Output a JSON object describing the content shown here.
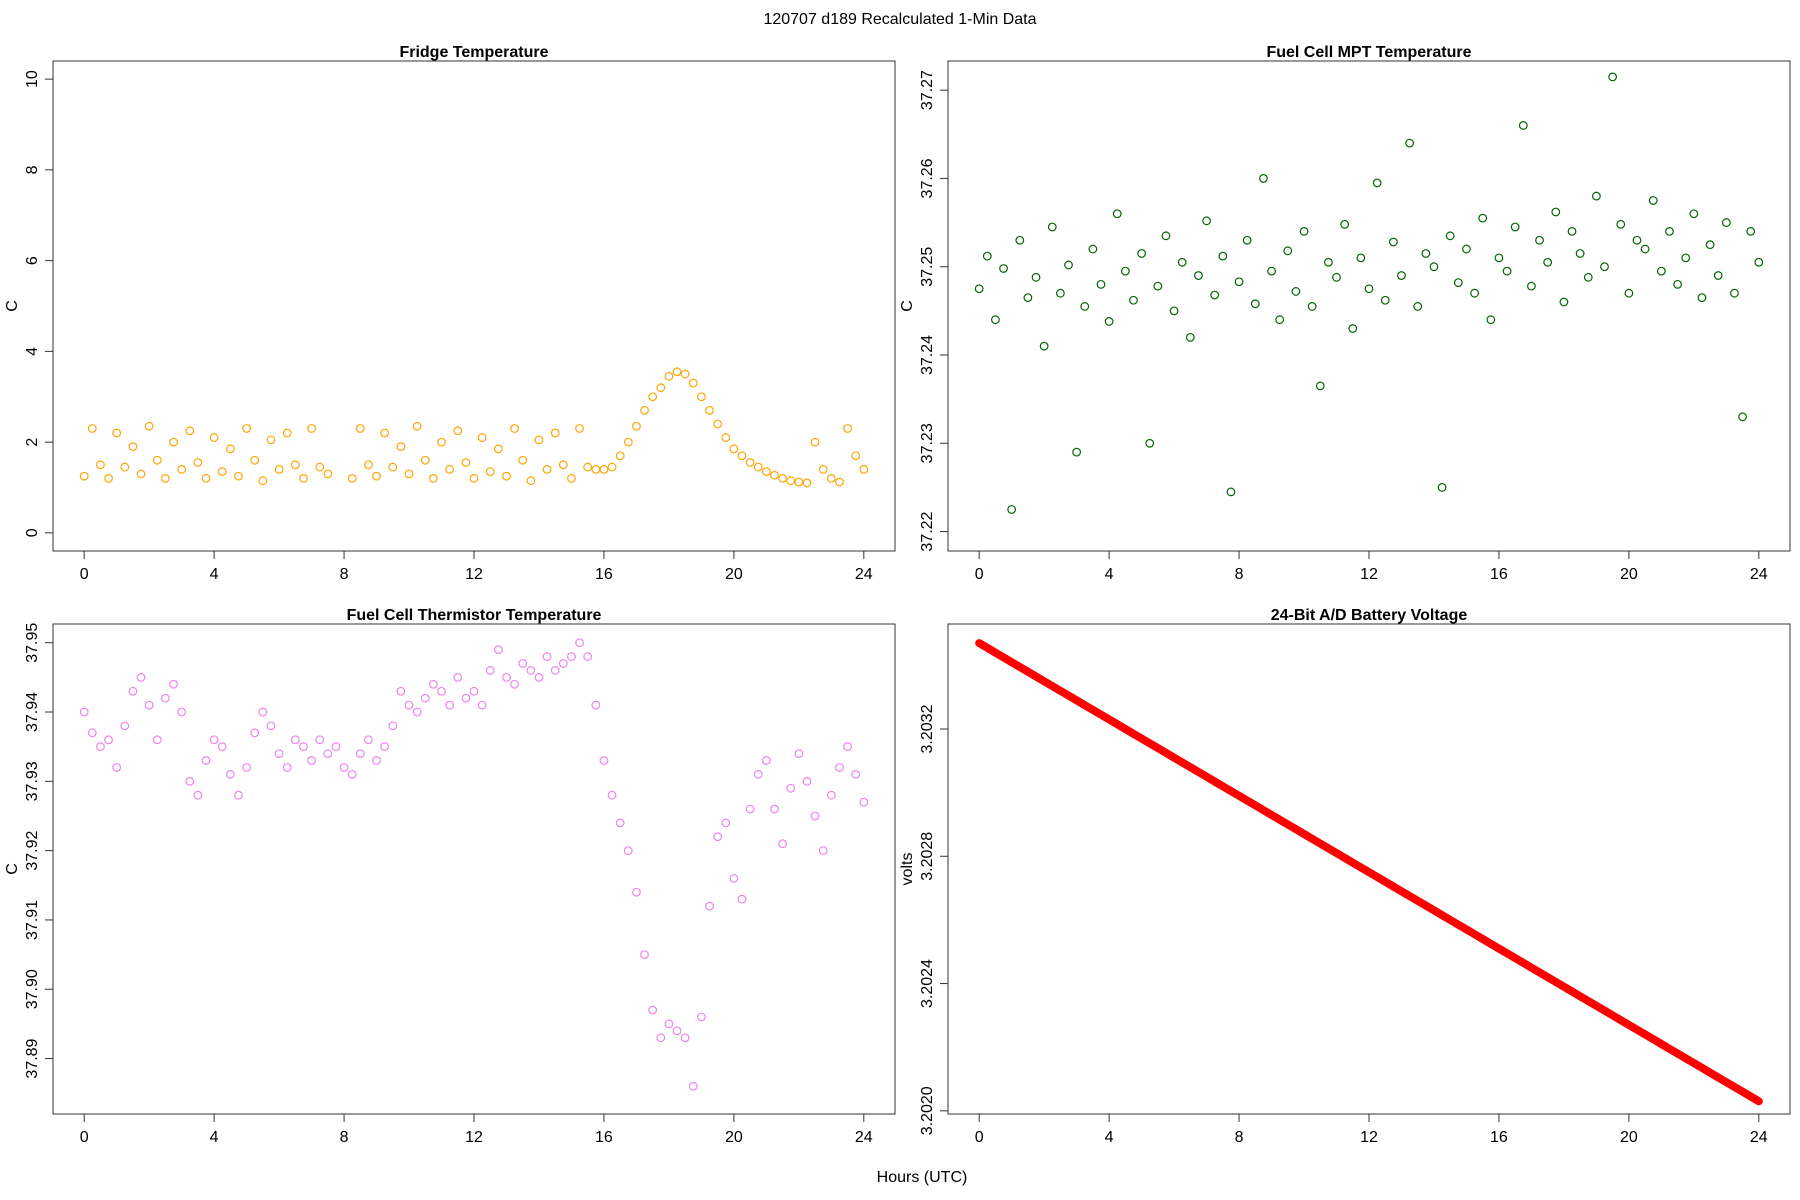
{
  "title": "120707   d189   Recalculated 1-Min Data",
  "xlabel": "Hours (UTC)",
  "chart_data": [
    {
      "type": "scatter",
      "title": "Fridge Temperature",
      "ylabel": "C",
      "color": "#ffa500",
      "xlim": [
        -0.96,
        24.96
      ],
      "ylim": [
        -0.4,
        10.4
      ],
      "xticks": [
        0,
        4,
        8,
        12,
        16,
        20,
        24
      ],
      "yticks": [
        0,
        2,
        4,
        6,
        8,
        10
      ],
      "x": [
        0,
        0.25,
        0.5,
        0.75,
        1,
        1.25,
        1.5,
        1.75,
        2,
        2.25,
        2.5,
        2.75,
        3,
        3.25,
        3.5,
        3.75,
        4,
        4.25,
        4.5,
        4.75,
        5,
        5.25,
        5.5,
        5.75,
        6,
        6.25,
        6.5,
        6.75,
        7,
        7.25,
        7.5,
        7.75,
        8,
        8.25,
        8.5,
        8.75,
        9,
        9.25,
        9.5,
        9.75,
        10,
        10.25,
        10.5,
        10.75,
        11,
        11.25,
        11.5,
        11.75,
        12,
        12.25,
        12.5,
        12.75,
        13,
        13.25,
        13.5,
        13.75,
        14,
        14.25,
        14.5,
        14.75,
        15,
        15.25,
        15.5,
        15.75,
        16,
        16.25,
        16.5,
        16.75,
        17,
        17.25,
        17.5,
        17.75,
        18,
        18.25,
        18.5,
        18.75,
        19,
        19.25,
        19.5,
        19.75,
        20,
        20.25,
        20.5,
        20.75,
        21,
        21.25,
        21.5,
        21.75,
        22,
        22.25,
        22.5,
        22.75,
        23,
        23.25,
        23.5,
        23.75,
        24
      ],
      "values": [
        1.25,
        2.3,
        1.5,
        1.2,
        2.2,
        1.45,
        1.9,
        1.3,
        2.35,
        1.6,
        1.2,
        2.0,
        1.4,
        2.25,
        1.55,
        1.2,
        2.1,
        1.35,
        1.85,
        1.25,
        2.3,
        1.6,
        1.15,
        2.05,
        1.4,
        2.2,
        1.5,
        1.2,
        2.3,
        1.45,
        1.3,
        null,
        null,
        1.2,
        2.3,
        1.5,
        1.25,
        2.2,
        1.45,
        1.9,
        1.3,
        2.35,
        1.6,
        1.2,
        2.0,
        1.4,
        2.25,
        1.55,
        1.2,
        2.1,
        1.35,
        1.85,
        1.25,
        2.3,
        1.6,
        1.15,
        2.05,
        1.4,
        2.2,
        1.5,
        1.2,
        2.3,
        1.45,
        1.4,
        1.4,
        1.45,
        1.7,
        2.0,
        2.35,
        2.7,
        3.0,
        3.2,
        3.45,
        3.55,
        3.5,
        3.3,
        3.0,
        2.7,
        2.4,
        2.1,
        1.85,
        1.7,
        1.55,
        1.45,
        1.35,
        1.27,
        1.2,
        1.15,
        1.12,
        1.1,
        2.0,
        1.4,
        1.2,
        1.12,
        2.3,
        1.7,
        1.4
      ]
    },
    {
      "type": "scatter",
      "title": "Fuel Cell MPT Temperature",
      "ylabel": "C",
      "color": "#006400",
      "xlim": [
        -0.96,
        24.96
      ],
      "ylim": [
        37.2178,
        37.2733
      ],
      "xticks": [
        0,
        4,
        8,
        12,
        16,
        20,
        24
      ],
      "yticks": [
        37.22,
        37.23,
        37.24,
        37.25,
        37.26,
        37.27
      ],
      "x": [
        0,
        0.25,
        0.5,
        0.75,
        1,
        1.25,
        1.5,
        1.75,
        2,
        2.25,
        2.5,
        2.75,
        3,
        3.25,
        3.5,
        3.75,
        4,
        4.25,
        4.5,
        4.75,
        5,
        5.25,
        5.5,
        5.75,
        6,
        6.25,
        6.5,
        6.75,
        7,
        7.25,
        7.5,
        7.75,
        8,
        8.25,
        8.5,
        8.75,
        9,
        9.25,
        9.5,
        9.75,
        10,
        10.25,
        10.5,
        10.75,
        11,
        11.25,
        11.5,
        11.75,
        12,
        12.25,
        12.5,
        12.75,
        13,
        13.25,
        13.5,
        13.75,
        14,
        14.25,
        14.5,
        14.75,
        15,
        15.25,
        15.5,
        15.75,
        16,
        16.25,
        16.5,
        16.75,
        17,
        17.25,
        17.5,
        17.75,
        18,
        18.25,
        18.5,
        18.75,
        19,
        19.25,
        19.5,
        19.75,
        20,
        20.25,
        20.5,
        20.75,
        21,
        21.25,
        21.5,
        21.75,
        22,
        22.25,
        22.5,
        22.75,
        23,
        23.25,
        23.5,
        23.75,
        24
      ],
      "values": [
        37.2475,
        37.2512,
        37.244,
        37.2498,
        37.2225,
        37.253,
        37.2465,
        37.2488,
        37.241,
        37.2545,
        37.247,
        37.2502,
        37.229,
        37.2455,
        37.252,
        37.248,
        37.2438,
        37.256,
        37.2495,
        37.2462,
        37.2515,
        37.23,
        37.2478,
        37.2535,
        37.245,
        37.2505,
        37.242,
        37.249,
        37.2552,
        37.2468,
        37.2512,
        37.2245,
        37.2483,
        37.253,
        37.2458,
        37.26,
        37.2495,
        37.244,
        37.2518,
        37.2472,
        37.254,
        37.2455,
        37.2365,
        37.2505,
        37.2488,
        37.2548,
        37.243,
        37.251,
        37.2475,
        37.2595,
        37.2462,
        37.2528,
        37.249,
        37.264,
        37.2455,
        37.2515,
        37.25,
        37.225,
        37.2535,
        37.2482,
        37.252,
        37.247,
        37.2555,
        37.244,
        37.251,
        37.2495,
        37.2545,
        37.266,
        37.2478,
        37.253,
        37.2505,
        37.2562,
        37.246,
        37.254,
        37.2515,
        37.2488,
        37.258,
        37.25,
        37.2715,
        37.2548,
        37.247,
        37.253,
        37.252,
        37.2575,
        37.2495,
        37.254,
        37.248,
        37.251,
        37.256,
        37.2465,
        37.2525,
        37.249,
        37.255,
        37.247,
        37.233,
        37.254,
        37.2505
      ]
    },
    {
      "type": "scatter",
      "title": "Fuel Cell Thermistor Temperature",
      "ylabel": "C",
      "color": "#ee82ee",
      "xlim": [
        -0.96,
        24.96
      ],
      "ylim": [
        37.882,
        37.9527
      ],
      "xticks": [
        0,
        4,
        8,
        12,
        16,
        20,
        24
      ],
      "yticks": [
        37.89,
        {
          "value": 37.9,
          "label": "37.90"
        },
        37.91,
        37.92,
        37.93,
        37.94,
        37.95
      ],
      "x": [
        0,
        0.25,
        0.5,
        0.75,
        1,
        1.25,
        1.5,
        1.75,
        2,
        2.25,
        2.5,
        2.75,
        3,
        3.25,
        3.5,
        3.75,
        4,
        4.25,
        4.5,
        4.75,
        5,
        5.25,
        5.5,
        5.75,
        6,
        6.25,
        6.5,
        6.75,
        7,
        7.25,
        7.5,
        7.75,
        8,
        8.25,
        8.5,
        8.75,
        9,
        9.25,
        9.5,
        9.75,
        10,
        10.25,
        10.5,
        10.75,
        11,
        11.25,
        11.5,
        11.75,
        12,
        12.25,
        12.5,
        12.75,
        13,
        13.25,
        13.5,
        13.75,
        14,
        14.25,
        14.5,
        14.75,
        15,
        15.25,
        15.5,
        15.75,
        16,
        16.25,
        16.5,
        16.75,
        17,
        17.25,
        17.5,
        17.75,
        18,
        18.25,
        18.5,
        18.75,
        19,
        19.25,
        19.5,
        19.75,
        20,
        20.25,
        20.5,
        20.75,
        21,
        21.25,
        21.5,
        21.75,
        22,
        22.25,
        22.5,
        22.75,
        23,
        23.25,
        23.5,
        23.75,
        24
      ],
      "values": [
        37.94,
        37.937,
        37.935,
        37.936,
        37.932,
        37.938,
        37.943,
        37.945,
        37.941,
        37.936,
        37.942,
        37.944,
        37.94,
        37.93,
        37.928,
        37.933,
        37.936,
        37.935,
        37.931,
        37.928,
        37.932,
        37.937,
        37.94,
        37.938,
        37.934,
        37.932,
        37.936,
        37.935,
        37.933,
        37.936,
        37.934,
        37.935,
        37.932,
        37.931,
        37.934,
        37.936,
        37.933,
        37.935,
        37.938,
        37.943,
        37.941,
        37.94,
        37.942,
        37.944,
        37.943,
        37.941,
        37.945,
        37.942,
        37.943,
        37.941,
        37.946,
        37.949,
        37.945,
        37.944,
        37.947,
        37.946,
        37.945,
        37.948,
        37.946,
        37.947,
        37.948,
        37.95,
        37.948,
        37.941,
        37.933,
        37.928,
        37.924,
        37.92,
        37.914,
        37.905,
        37.897,
        37.893,
        37.895,
        37.894,
        37.893,
        37.886,
        37.896,
        37.912,
        37.922,
        37.924,
        37.916,
        37.913,
        37.926,
        37.931,
        37.933,
        37.926,
        37.921,
        37.929,
        37.934,
        37.93,
        37.925,
        37.92,
        37.928,
        37.932,
        37.935,
        37.931,
        37.927
      ]
    },
    {
      "type": "line",
      "title": "24-Bit A/D Battery Voltage",
      "ylabel": "volts",
      "color": "#ff0000",
      "xlim": [
        -0.96,
        24.96
      ],
      "ylim": [
        3.20199,
        3.20353
      ],
      "xticks": [
        0,
        4,
        8,
        12,
        16,
        20,
        24
      ],
      "yticks": [
        {
          "value": 3.202,
          "label": "3.2020"
        },
        3.2024,
        3.2028,
        3.2032
      ],
      "x": [
        0,
        0.25,
        0.5,
        0.75,
        1,
        1.25,
        1.5,
        1.75,
        2,
        2.25,
        2.5,
        2.75,
        3,
        3.25,
        3.5,
        3.75,
        4,
        4.25,
        4.5,
        4.75,
        5,
        5.25,
        5.5,
        5.75,
        6,
        6.25,
        6.5,
        6.75,
        7,
        7.25,
        7.5,
        7.75,
        8,
        8.25,
        8.5,
        8.75,
        9,
        9.25,
        9.5,
        9.75,
        10,
        10.25,
        10.5,
        10.75,
        11,
        11.25,
        11.5,
        11.75,
        12,
        12.25,
        12.5,
        12.75,
        13,
        13.25,
        13.5,
        13.75,
        14,
        14.25,
        14.5,
        14.75,
        15,
        15.25,
        15.5,
        15.75,
        16,
        16.25,
        16.5,
        16.75,
        17,
        17.25,
        17.5,
        17.75,
        18,
        18.25,
        18.5,
        18.75,
        19,
        19.25,
        19.5,
        19.75,
        20,
        20.25,
        20.5,
        20.75,
        21,
        21.25,
        21.5,
        21.75,
        22,
        22.25,
        22.5,
        22.75,
        23,
        23.25,
        23.5,
        23.75,
        24
      ],
      "values": [
        3.20347,
        3.203455,
        3.20344,
        3.203425,
        3.20341,
        3.203395,
        3.20338,
        3.203365,
        3.20335,
        3.203335,
        3.20332,
        3.203305,
        3.20329,
        3.203275,
        3.20326,
        3.203245,
        3.20323,
        3.203215,
        3.2032,
        3.203185,
        3.20317,
        3.203155,
        3.20314,
        3.203125,
        3.20311,
        3.203095,
        3.20308,
        3.203065,
        3.20305,
        3.203035,
        3.20302,
        3.203005,
        3.20299,
        3.202975,
        3.20296,
        3.202945,
        3.20293,
        3.202915,
        3.2029,
        3.202885,
        3.20287,
        3.202855,
        3.20284,
        3.202825,
        3.20281,
        3.202795,
        3.20278,
        3.202765,
        3.20275,
        3.202735,
        3.20272,
        3.202705,
        3.20269,
        3.202675,
        3.20266,
        3.202645,
        3.20263,
        3.202615,
        3.2026,
        3.202585,
        3.20257,
        3.202555,
        3.20254,
        3.202525,
        3.20251,
        3.202495,
        3.20248,
        3.202465,
        3.20245,
        3.202435,
        3.20242,
        3.202405,
        3.20239,
        3.202375,
        3.20236,
        3.202345,
        3.20233,
        3.202315,
        3.2023,
        3.202285,
        3.20227,
        3.202255,
        3.20224,
        3.202225,
        3.20221,
        3.202195,
        3.20218,
        3.202165,
        3.20215,
        3.202135,
        3.20212,
        3.202105,
        3.20209,
        3.202075,
        3.20206,
        3.202045,
        3.20203
      ]
    }
  ]
}
